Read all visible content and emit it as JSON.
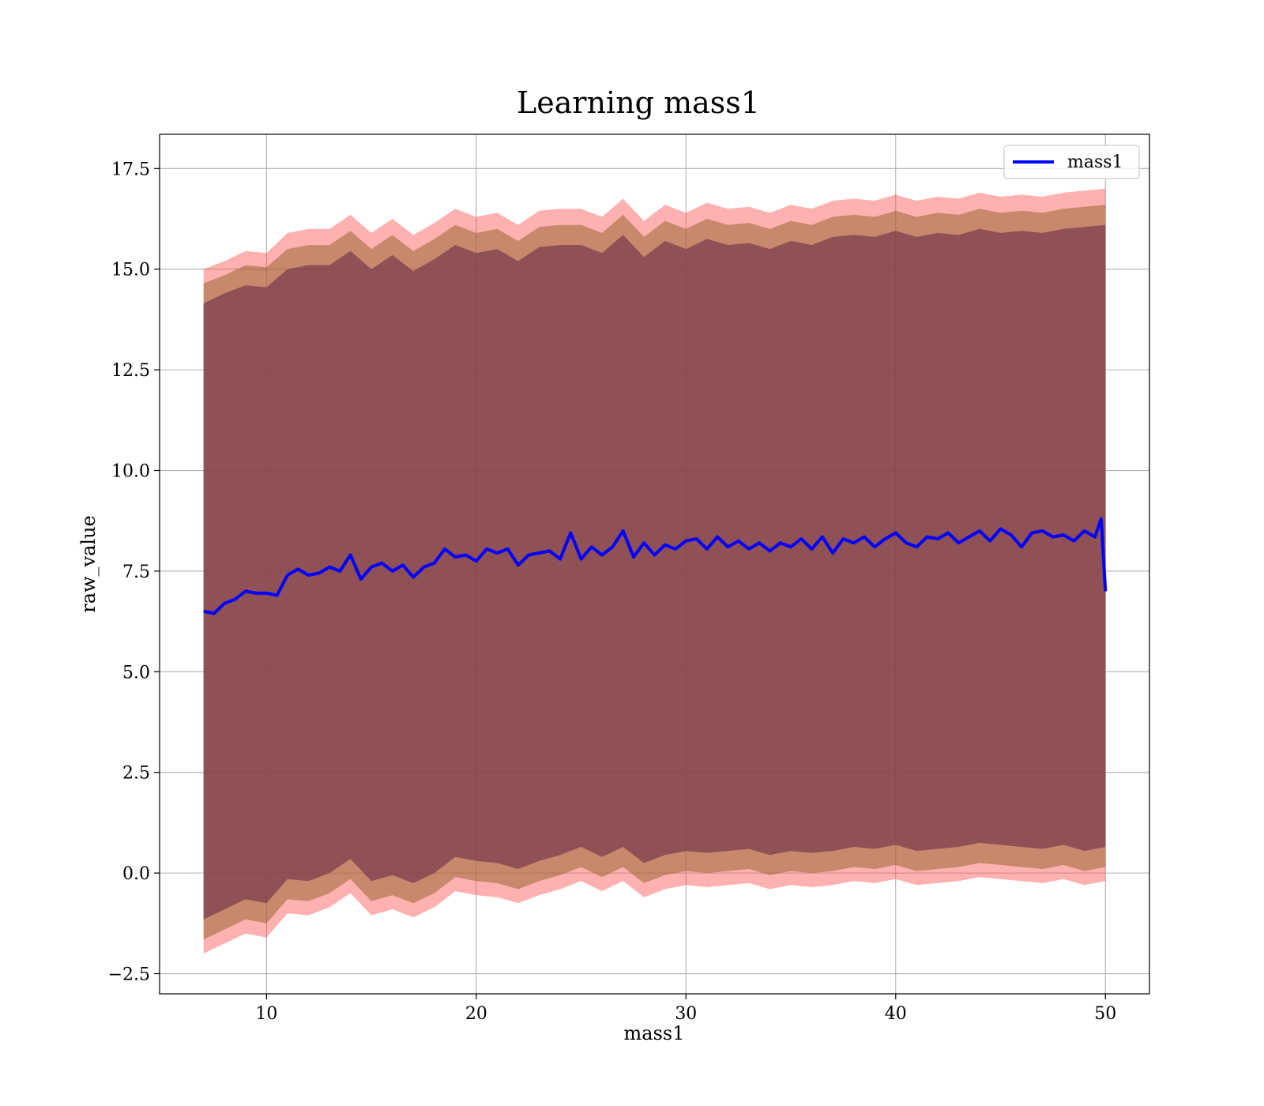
{
  "chart_data": {
    "type": "line",
    "title": "Learning mass1",
    "xlabel": "mass1",
    "ylabel": "raw_value",
    "xlim": [
      4.9,
      52.1
    ],
    "ylim": [
      -3.0,
      18.35
    ],
    "xticks": [
      10,
      20,
      30,
      40,
      50
    ],
    "xtick_labels": [
      "10",
      "20",
      "30",
      "40",
      "50"
    ],
    "yticks": [
      -2.5,
      0.0,
      2.5,
      5.0,
      7.5,
      10.0,
      12.5,
      15.0,
      17.5
    ],
    "ytick_labels": [
      "−2.5",
      "0.0",
      "2.5",
      "5.0",
      "7.5",
      "10.0",
      "12.5",
      "15.0",
      "17.5"
    ],
    "grid": true,
    "legend_position": "top-right",
    "series": [
      {
        "name": "mass1",
        "color": "#0000ff",
        "x": [
          7.0,
          7.5,
          8.0,
          8.5,
          9.0,
          9.5,
          10.0,
          10.5,
          11.0,
          11.5,
          12.0,
          12.5,
          13.0,
          13.5,
          14.0,
          14.5,
          15.0,
          15.5,
          16.0,
          16.5,
          17.0,
          17.5,
          18.0,
          18.5,
          19.0,
          19.5,
          20.0,
          20.5,
          21.0,
          21.5,
          22.0,
          22.5,
          23.0,
          23.5,
          24.0,
          24.5,
          25.0,
          25.5,
          26.0,
          26.5,
          27.0,
          27.5,
          28.0,
          28.5,
          29.0,
          29.5,
          30.0,
          30.5,
          31.0,
          31.5,
          32.0,
          32.5,
          33.0,
          33.5,
          34.0,
          34.5,
          35.0,
          35.5,
          36.0,
          36.5,
          37.0,
          37.5,
          38.0,
          38.5,
          39.0,
          39.5,
          40.0,
          40.5,
          41.0,
          41.5,
          42.0,
          42.5,
          43.0,
          43.5,
          44.0,
          44.5,
          45.0,
          45.5,
          46.0,
          46.5,
          47.0,
          47.5,
          48.0,
          48.5,
          49.0,
          49.5,
          49.8,
          50.0
        ],
        "values": [
          6.5,
          6.45,
          6.7,
          6.8,
          7.0,
          6.95,
          6.95,
          6.9,
          7.4,
          7.55,
          7.4,
          7.45,
          7.6,
          7.5,
          7.9,
          7.3,
          7.6,
          7.7,
          7.5,
          7.65,
          7.35,
          7.6,
          7.7,
          8.05,
          7.85,
          7.9,
          7.75,
          8.05,
          7.95,
          8.05,
          7.65,
          7.9,
          7.95,
          8.0,
          7.8,
          8.45,
          7.8,
          8.1,
          7.9,
          8.1,
          8.5,
          7.85,
          8.2,
          7.9,
          8.15,
          8.05,
          8.25,
          8.3,
          8.05,
          8.35,
          8.1,
          8.25,
          8.05,
          8.2,
          8.0,
          8.2,
          8.1,
          8.3,
          8.05,
          8.35,
          7.95,
          8.3,
          8.2,
          8.35,
          8.1,
          8.3,
          8.45,
          8.2,
          8.1,
          8.35,
          8.3,
          8.45,
          8.2,
          8.35,
          8.5,
          8.25,
          8.55,
          8.4,
          8.1,
          8.45,
          8.5,
          8.35,
          8.4,
          8.25,
          8.5,
          8.35,
          8.8,
          7.0
        ]
      }
    ],
    "bands": [
      {
        "color": "#ff4444",
        "opacity": 0.42,
        "x": [
          7.0,
          8.0,
          9.0,
          10.0,
          11.0,
          12.0,
          13.0,
          14.0,
          15.0,
          16.0,
          17.0,
          18.0,
          19.0,
          20.0,
          21.0,
          22.0,
          23.0,
          24.0,
          25.0,
          26.0,
          27.0,
          28.0,
          29.0,
          30.0,
          31.0,
          32.0,
          33.0,
          34.0,
          35.0,
          36.0,
          37.0,
          38.0,
          39.0,
          40.0,
          41.0,
          42.0,
          43.0,
          44.0,
          45.0,
          46.0,
          47.0,
          48.0,
          49.0,
          50.0
        ],
        "upper": [
          15.0,
          15.2,
          15.45,
          15.4,
          15.9,
          16.0,
          16.0,
          16.35,
          15.9,
          16.25,
          15.85,
          16.15,
          16.5,
          16.3,
          16.4,
          16.1,
          16.45,
          16.5,
          16.5,
          16.3,
          16.75,
          16.2,
          16.6,
          16.4,
          16.65,
          16.5,
          16.55,
          16.4,
          16.6,
          16.5,
          16.7,
          16.75,
          16.7,
          16.85,
          16.7,
          16.8,
          16.75,
          16.9,
          16.8,
          16.85,
          16.8,
          16.9,
          16.95,
          17.0
        ],
        "lower": [
          -2.0,
          -1.75,
          -1.5,
          -1.6,
          -1.0,
          -1.05,
          -0.85,
          -0.5,
          -1.05,
          -0.9,
          -1.1,
          -0.85,
          -0.45,
          -0.55,
          -0.6,
          -0.75,
          -0.55,
          -0.4,
          -0.2,
          -0.45,
          -0.2,
          -0.6,
          -0.4,
          -0.3,
          -0.35,
          -0.3,
          -0.25,
          -0.4,
          -0.3,
          -0.35,
          -0.3,
          -0.2,
          -0.25,
          -0.15,
          -0.3,
          -0.25,
          -0.2,
          -0.1,
          -0.15,
          -0.2,
          -0.25,
          -0.15,
          -0.3,
          -0.2
        ]
      },
      {
        "color": "#996633",
        "opacity": 0.55,
        "x": [
          7.0,
          8.0,
          9.0,
          10.0,
          11.0,
          12.0,
          13.0,
          14.0,
          15.0,
          16.0,
          17.0,
          18.0,
          19.0,
          20.0,
          21.0,
          22.0,
          23.0,
          24.0,
          25.0,
          26.0,
          27.0,
          28.0,
          29.0,
          30.0,
          31.0,
          32.0,
          33.0,
          34.0,
          35.0,
          36.0,
          37.0,
          38.0,
          39.0,
          40.0,
          41.0,
          42.0,
          43.0,
          44.0,
          45.0,
          46.0,
          47.0,
          48.0,
          49.0,
          50.0
        ],
        "upper": [
          14.65,
          14.85,
          15.1,
          15.05,
          15.5,
          15.6,
          15.6,
          15.95,
          15.5,
          15.85,
          15.45,
          15.75,
          16.1,
          15.9,
          16.0,
          15.7,
          16.05,
          16.1,
          16.1,
          15.9,
          16.35,
          15.8,
          16.2,
          16.0,
          16.25,
          16.1,
          16.15,
          16.0,
          16.2,
          16.1,
          16.3,
          16.35,
          16.3,
          16.45,
          16.3,
          16.4,
          16.35,
          16.5,
          16.4,
          16.45,
          16.4,
          16.5,
          16.55,
          16.6
        ],
        "lower": [
          -1.65,
          -1.4,
          -1.15,
          -1.25,
          -0.65,
          -0.7,
          -0.5,
          -0.15,
          -0.7,
          -0.55,
          -0.75,
          -0.5,
          -0.1,
          -0.2,
          -0.25,
          -0.4,
          -0.2,
          -0.05,
          0.15,
          -0.1,
          0.15,
          -0.25,
          -0.05,
          0.05,
          0.0,
          0.05,
          0.1,
          -0.05,
          0.05,
          0.0,
          0.05,
          0.15,
          0.1,
          0.2,
          0.05,
          0.1,
          0.15,
          0.25,
          0.2,
          0.15,
          0.1,
          0.2,
          0.05,
          0.15
        ]
      },
      {
        "color": "#7a3a4d",
        "opacity": 0.72,
        "x": [
          7.0,
          8.0,
          9.0,
          10.0,
          11.0,
          12.0,
          13.0,
          14.0,
          15.0,
          16.0,
          17.0,
          18.0,
          19.0,
          20.0,
          21.0,
          22.0,
          23.0,
          24.0,
          25.0,
          26.0,
          27.0,
          28.0,
          29.0,
          30.0,
          31.0,
          32.0,
          33.0,
          34.0,
          35.0,
          36.0,
          37.0,
          38.0,
          39.0,
          40.0,
          41.0,
          42.0,
          43.0,
          44.0,
          45.0,
          46.0,
          47.0,
          48.0,
          49.0,
          50.0
        ],
        "upper": [
          14.15,
          14.4,
          14.6,
          14.55,
          15.0,
          15.1,
          15.1,
          15.45,
          15.0,
          15.35,
          14.95,
          15.25,
          15.6,
          15.4,
          15.5,
          15.2,
          15.55,
          15.6,
          15.6,
          15.4,
          15.85,
          15.3,
          15.7,
          15.5,
          15.75,
          15.6,
          15.65,
          15.5,
          15.7,
          15.6,
          15.8,
          15.85,
          15.8,
          15.95,
          15.8,
          15.9,
          15.85,
          16.0,
          15.9,
          15.95,
          15.9,
          16.0,
          16.05,
          16.1
        ],
        "lower": [
          -1.15,
          -0.9,
          -0.65,
          -0.75,
          -0.15,
          -0.2,
          0.0,
          0.35,
          -0.2,
          -0.05,
          -0.25,
          0.0,
          0.4,
          0.3,
          0.25,
          0.1,
          0.3,
          0.45,
          0.65,
          0.4,
          0.65,
          0.25,
          0.45,
          0.55,
          0.5,
          0.55,
          0.6,
          0.45,
          0.55,
          0.5,
          0.55,
          0.65,
          0.6,
          0.7,
          0.55,
          0.6,
          0.65,
          0.75,
          0.7,
          0.65,
          0.6,
          0.7,
          0.55,
          0.65
        ]
      }
    ]
  }
}
